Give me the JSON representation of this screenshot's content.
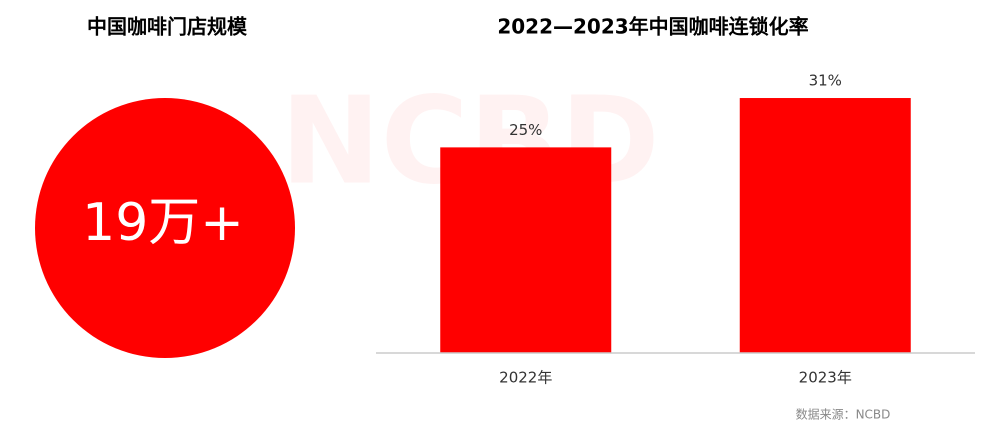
{
  "watermark": "NCBD",
  "source": "数据来源：NCBD",
  "chart_data": [
    {
      "type": "stat",
      "title": "中国咖啡门店规模",
      "text": "19万+",
      "color": "#ff0000"
    },
    {
      "type": "bar",
      "title": "2022—2023年中国咖啡连锁化率",
      "categories": [
        "2022年",
        "2023年"
      ],
      "values": [
        25,
        31
      ],
      "value_labels": [
        "25%",
        "31%"
      ],
      "color": "#ff0000",
      "ylim": [
        0,
        40
      ]
    }
  ]
}
